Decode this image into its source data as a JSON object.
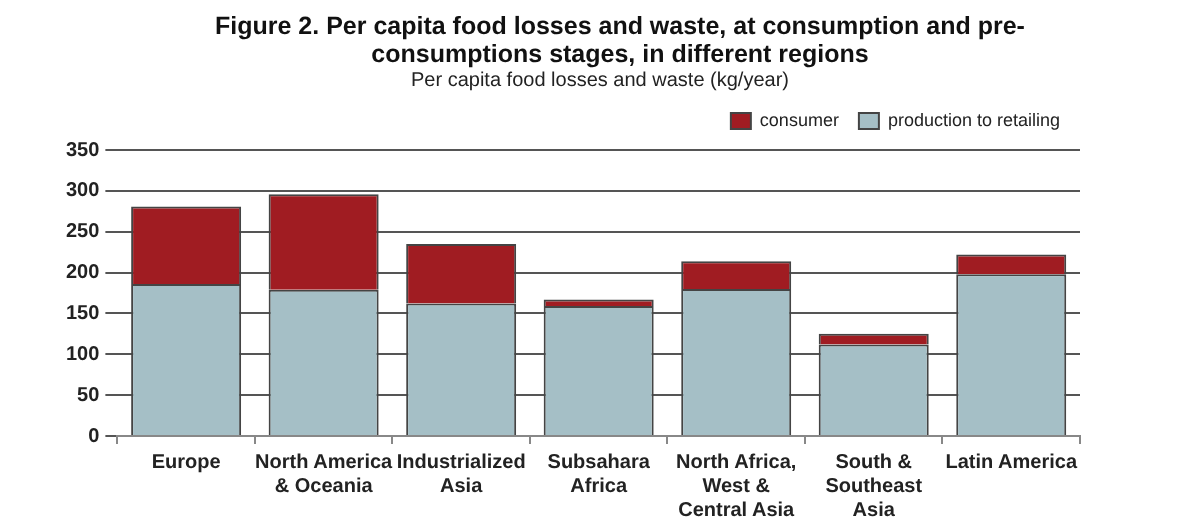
{
  "chart_data": {
    "type": "bar",
    "title": "Figure 2.  Per capita food losses and waste, at consumption and pre-consumptions stages, in different regions",
    "subtitle": "Per capita food losses and waste (kg/year)",
    "categories": [
      "Europe",
      "North America & Oceania",
      "Industrialized Asia",
      "Subsahara Africa",
      "North Africa, West & Central Asia",
      "South & Southeast Asia",
      "Latin America"
    ],
    "stacked": true,
    "series": [
      {
        "name": "production to retailing",
        "color": "#a5bfc6",
        "values": [
          186,
          179,
          162,
          159,
          180,
          112,
          198
        ]
      },
      {
        "name": "consumer",
        "color": "#a01c22",
        "values": [
          95,
          117,
          73,
          8,
          34,
          13,
          24
        ]
      }
    ],
    "ylim": [
      0,
      350
    ],
    "yticks": [
      0,
      50,
      100,
      150,
      200,
      250,
      300,
      350
    ],
    "grid": "y",
    "legend": "top right"
  }
}
